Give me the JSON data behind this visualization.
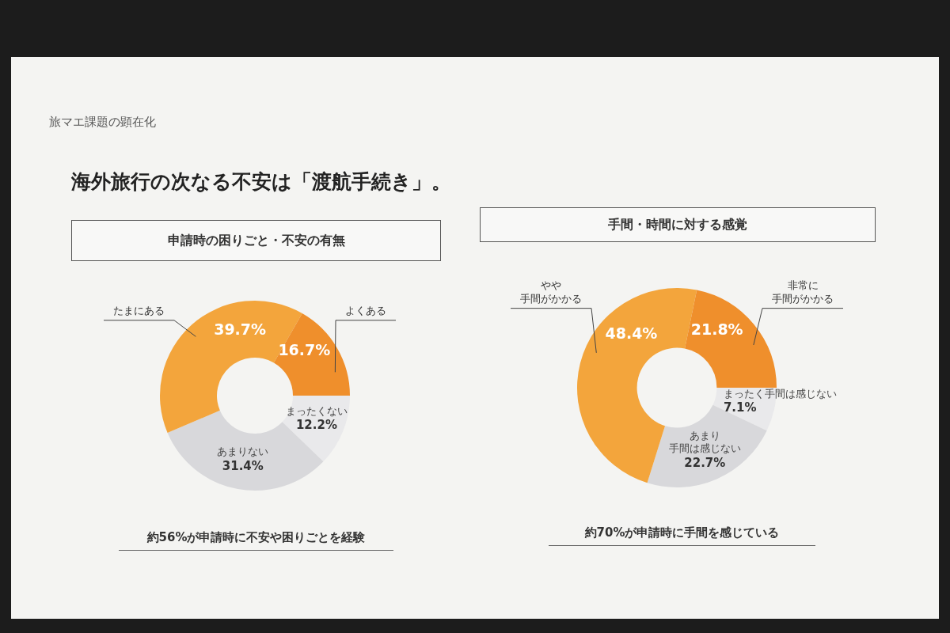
{
  "chart_data": [
    {
      "type": "other",
      "title": "海外旅行の次なる不安は「渡航手続き」。",
      "annotations": [
        "旅マエ課題の顕在化"
      ]
    },
    {
      "type": "donut",
      "title": "申請時の困りごと・不安の有無",
      "categories": [
        "よくある",
        "たまにある",
        "あまりない",
        "まったくない"
      ],
      "values": [
        16.7,
        39.7,
        31.4,
        12.2
      ],
      "colors": [
        "#ef8f2c",
        "#f3a53c",
        "#d8d8db",
        "#e9e9eb"
      ],
      "value_labels": [
        "16.7%",
        "39.7%",
        "31.4%",
        "12.2%"
      ],
      "annotations": [
        "約56%が申請時に不安や困りごとを経験"
      ]
    },
    {
      "type": "donut",
      "title": "手間・時間に対する感覚",
      "categories": [
        "非常に手間がかかる",
        "やや手間がかかる",
        "あまり手間は感じない",
        "まったく手間は感じない"
      ],
      "values": [
        21.8,
        48.4,
        22.7,
        7.1
      ],
      "colors": [
        "#ef8f2c",
        "#f3a53c",
        "#d8d8db",
        "#e9e9eb"
      ],
      "value_labels": [
        "21.8%",
        "48.4%",
        "22.7%",
        "7.1%"
      ],
      "annotations": [
        "約70%が申請時に手間を感じている"
      ]
    }
  ]
}
